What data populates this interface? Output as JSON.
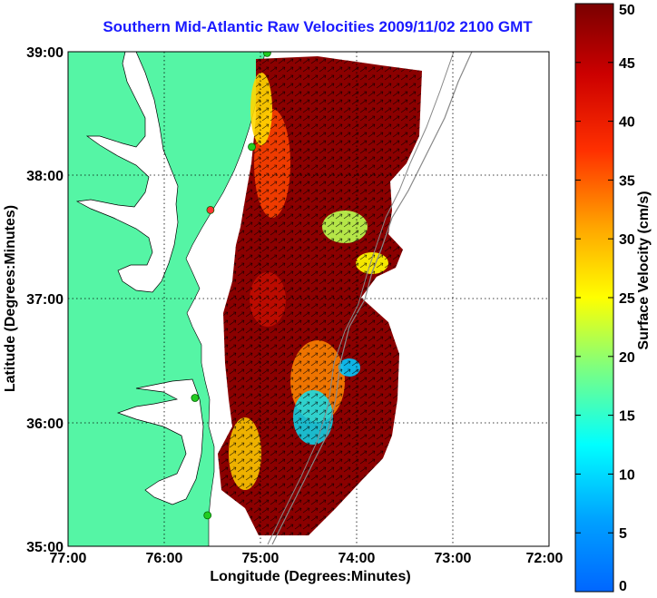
{
  "title": "Southern Mid-Atlantic Raw Velocities 2009/11/02 2100 GMT",
  "xlabel": "Longitude (Degrees:Minutes)",
  "ylabel": "Latitude (Degrees:Minutes)",
  "colorbar_label": "Surface Velocity (cm/s)",
  "x_ticks": [
    "77:00",
    "76:00",
    "75:00",
    "74:00",
    "73:00",
    "72:00"
  ],
  "y_ticks": [
    "39:00",
    "38:00",
    "37:00",
    "36:00",
    "35:00"
  ],
  "colorbar_ticks": [
    "0",
    "5",
    "10",
    "15",
    "20",
    "25",
    "30",
    "35",
    "40",
    "45",
    "50"
  ],
  "chart_data": {
    "type": "heatmap",
    "x_range_deg_west": [
      77,
      72
    ],
    "y_range_deg_north": [
      35,
      39
    ],
    "colorbar_range": [
      0,
      50
    ],
    "colorbar_units": "cm/s",
    "grid": true,
    "land_color": "#55f5a5",
    "stations": [
      {
        "lon": 74.93,
        "lat": 38.99,
        "color": "#22cc22"
      },
      {
        "lon": 75.09,
        "lat": 38.23,
        "color": "#22cc22"
      },
      {
        "lon": 75.52,
        "lat": 37.72,
        "color": "#ff3333"
      },
      {
        "lon": 75.68,
        "lat": 36.2,
        "color": "#22cc22"
      },
      {
        "lon": 75.55,
        "lat": 35.25,
        "color": "#22cc22"
      }
    ]
  }
}
